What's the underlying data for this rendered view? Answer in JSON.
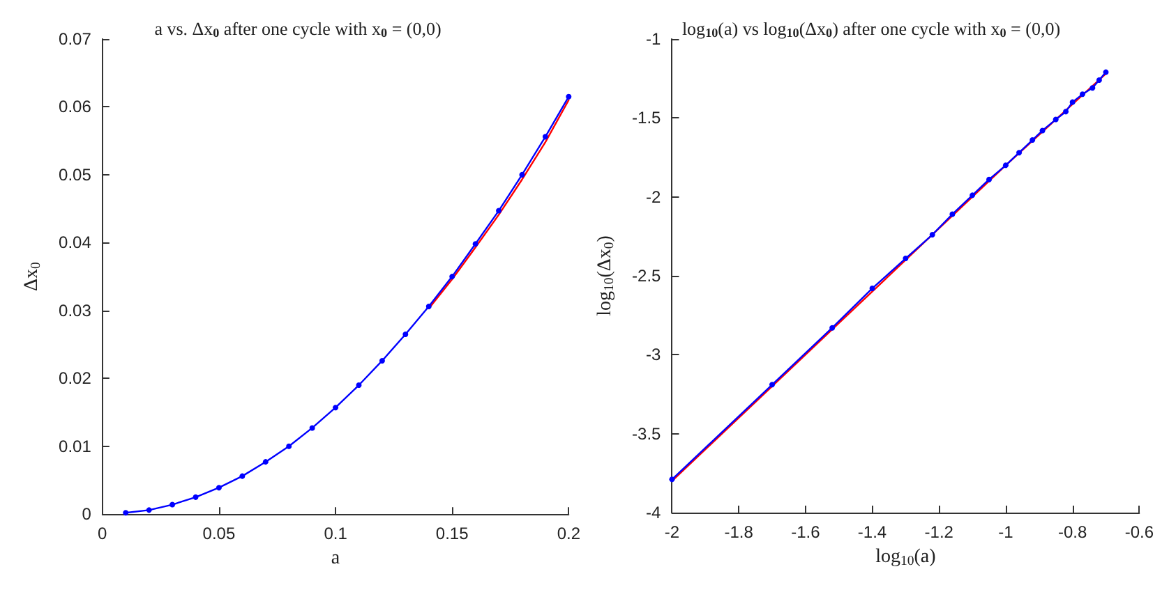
{
  "chart_data": [
    {
      "type": "line",
      "title": "a vs. Δx$_{0}$ after one cycle with x$_{0}$ = (0,0)",
      "xlabel": "a",
      "ylabel": "Δx$_{0}$",
      "xlim": [
        0,
        0.2
      ],
      "xticks": [
        0,
        0.05,
        0.1,
        0.15,
        0.2
      ],
      "ylim": [
        0,
        0.07
      ],
      "yticks": [
        0,
        0.01,
        0.02,
        0.03,
        0.04,
        0.05,
        0.06,
        0.07
      ],
      "grid": false,
      "series": [
        {
          "color": "#ff0000",
          "marker": "none",
          "x": [
            0.14,
            0.15,
            0.16,
            0.17,
            0.18,
            0.19,
            0.2
          ],
          "values": [
            0.0303,
            0.0346,
            0.0393,
            0.0441,
            0.0493,
            0.0548,
            0.061
          ]
        },
        {
          "color": "#0000ff",
          "marker": "circle",
          "x": [
            0.01,
            0.02,
            0.03,
            0.04,
            0.05,
            0.06,
            0.07,
            0.08,
            0.09,
            0.1,
            0.11,
            0.12,
            0.13,
            0.14,
            0.15,
            0.16,
            0.17,
            0.18,
            0.19,
            0.2
          ],
          "values": [
            0.0002,
            0.0006,
            0.0014,
            0.0025,
            0.0039,
            0.0056,
            0.0077,
            0.01,
            0.0127,
            0.0157,
            0.019,
            0.0226,
            0.0265,
            0.0306,
            0.035,
            0.0398,
            0.0447,
            0.05,
            0.0556,
            0.0615
          ]
        }
      ]
    },
    {
      "type": "line",
      "title": "log$_{10}$(a) vs log$_{10}$(Δx$_{0}$) after one cycle with x$_{0}$ = (0,0)",
      "xlabel": "log$_{10}$(a)",
      "ylabel": "log$_{10}$(Δx$_{0}$)",
      "xlim": [
        -2,
        -0.6
      ],
      "xticks": [
        -2,
        -1.8,
        -1.6,
        -1.4,
        -1.2,
        -1,
        -0.8,
        -0.6
      ],
      "ylim": [
        -4,
        -1
      ],
      "yticks": [
        -4,
        -3.5,
        -3,
        -2.5,
        -2,
        -1.5,
        -1
      ],
      "grid": false,
      "series": [
        {
          "color": "#ff0000",
          "marker": "none",
          "x": [
            -2,
            -1.5,
            -1,
            -0.7
          ],
          "values": [
            -3.8,
            -2.8,
            -1.8,
            -1.22
          ]
        },
        {
          "color": "#0000ff",
          "marker": "circle",
          "x": [
            -2,
            -1.7,
            -1.52,
            -1.4,
            -1.3,
            -1.22,
            -1.16,
            -1.1,
            -1.05,
            -1,
            -0.96,
            -0.92,
            -0.89,
            -0.85,
            -0.82,
            -0.8,
            -0.77,
            -0.74,
            -0.72,
            -0.7
          ],
          "values": [
            -3.79,
            -3.19,
            -2.83,
            -2.58,
            -2.39,
            -2.24,
            -2.11,
            -1.99,
            -1.89,
            -1.8,
            -1.72,
            -1.64,
            -1.58,
            -1.51,
            -1.46,
            -1.4,
            -1.35,
            -1.31,
            -1.26,
            -1.21
          ]
        }
      ]
    }
  ]
}
